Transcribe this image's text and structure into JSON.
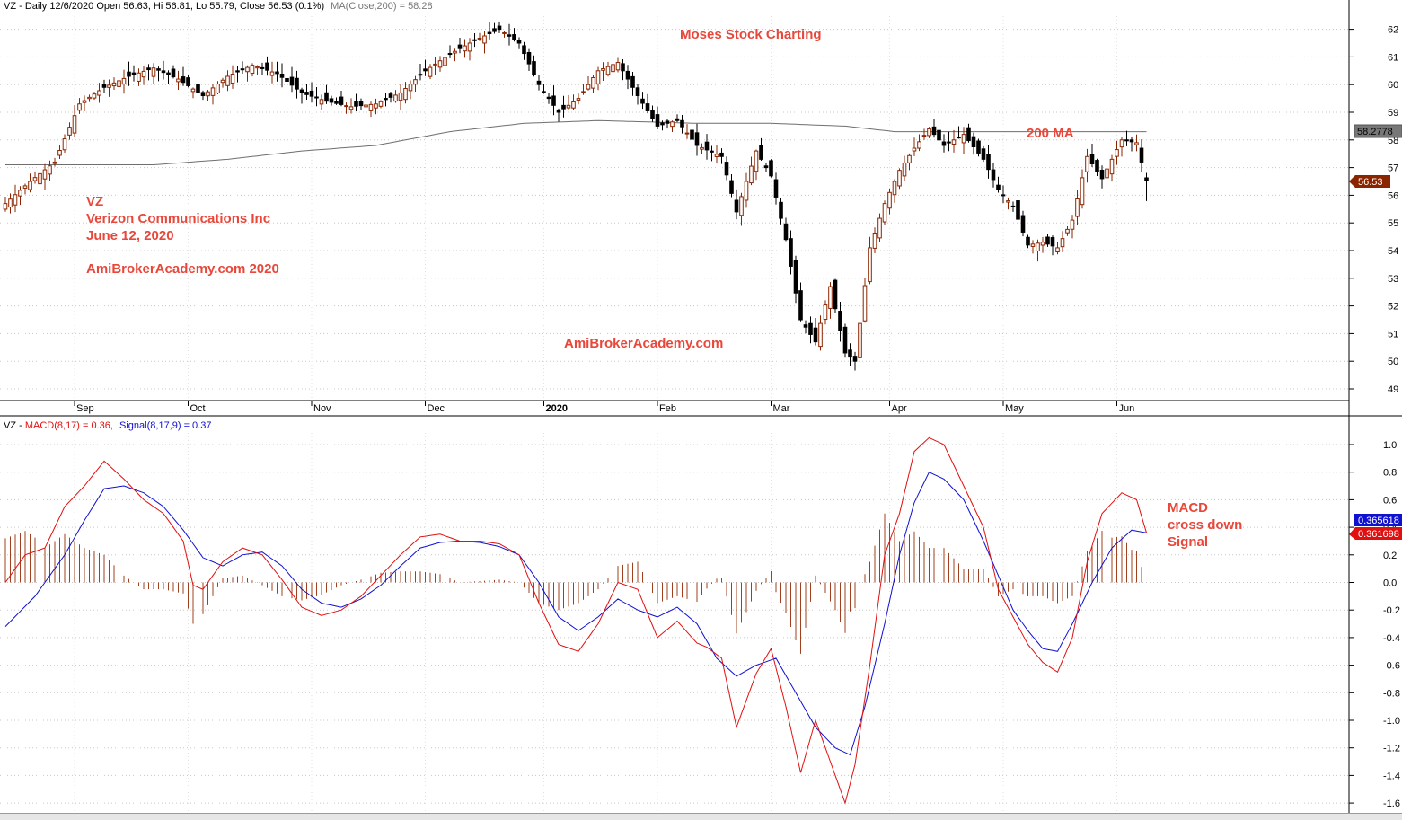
{
  "header": {
    "price_prefix": "VZ - Daily 12/6/2020 Open 56.63, Hi 56.81, Lo 55.79, Close 56.53 (0.1%)",
    "ma_text": "MA(Close,200) = 58.28",
    "macd_prefix": "VZ - ",
    "macd_text": "MACD(8,17) = 0.36,",
    "signal_text": "Signal(8,17,9) = 0.37"
  },
  "annotations": {
    "title": "Moses Stock Charting",
    "ticker": "VZ",
    "company": "Verizon Communications Inc",
    "date": "June 12, 2020",
    "site_left": "AmiBrokerAcademy.com  2020",
    "site_center": "AmiBrokerAcademy.com",
    "ma_label": "200 MA",
    "macd_note_1": "MACD",
    "macd_note_2": "cross down",
    "macd_note_3": "Signal"
  },
  "tags": {
    "ma_value": "58.2778",
    "close_value": "56.53",
    "signal_value": "0.365618",
    "macd_value": "0.361698"
  },
  "colors": {
    "up_candle": "#8b2500",
    "down_candle": "#000000",
    "ma_line": "#6e6e6e",
    "macd_line": "#e01010",
    "signal_line": "#1010d0",
    "histogram": "#a0401e",
    "annotation": "#e8473a"
  },
  "chart_data": [
    {
      "type": "candlestick",
      "name": "price",
      "x_labels": [
        "Sep",
        "Oct",
        "Nov",
        "Dec",
        "2020",
        "Feb",
        "Mar",
        "Apr",
        "May",
        "Jun"
      ],
      "x_label_bars": [
        14,
        37,
        62,
        85,
        109,
        132,
        155,
        179,
        202,
        225
      ],
      "yticks": [
        49,
        50,
        51,
        52,
        53,
        54,
        55,
        56,
        57,
        58,
        59,
        60,
        61,
        62
      ],
      "ylim": [
        48.6,
        63.2
      ],
      "close_points": [
        [
          0,
          55.7
        ],
        [
          5,
          56.5
        ],
        [
          10,
          57.2
        ],
        [
          15,
          59.3
        ],
        [
          20,
          59.9
        ],
        [
          25,
          60.3
        ],
        [
          30,
          60.6
        ],
        [
          35,
          60.2
        ],
        [
          40,
          59.6
        ],
        [
          45,
          60.3
        ],
        [
          50,
          60.7
        ],
        [
          55,
          60.4
        ],
        [
          60,
          59.7
        ],
        [
          65,
          59.4
        ],
        [
          70,
          59.2
        ],
        [
          75,
          59.3
        ],
        [
          80,
          59.7
        ],
        [
          85,
          60.5
        ],
        [
          90,
          61.1
        ],
        [
          95,
          61.6
        ],
        [
          100,
          62.0
        ],
        [
          104,
          61.5
        ],
        [
          108,
          60.0
        ],
        [
          112,
          59.0
        ],
        [
          116,
          59.5
        ],
        [
          120,
          60.5
        ],
        [
          124,
          60.8
        ],
        [
          128,
          59.6
        ],
        [
          132,
          58.5
        ],
        [
          136,
          58.7
        ],
        [
          140,
          57.8
        ],
        [
          145,
          57.4
        ],
        [
          148,
          55.4
        ],
        [
          152,
          57.6
        ],
        [
          155,
          56.7
        ],
        [
          158,
          54.4
        ],
        [
          161,
          51.5
        ],
        [
          164,
          50.7
        ],
        [
          167,
          52.7
        ],
        [
          170,
          50.3
        ],
        [
          172,
          50.0
        ],
        [
          175,
          54.1
        ],
        [
          178,
          55.7
        ],
        [
          181,
          56.9
        ],
        [
          184,
          57.7
        ],
        [
          187,
          58.4
        ],
        [
          190,
          57.8
        ],
        [
          194,
          58.2
        ],
        [
          198,
          57.3
        ],
        [
          201,
          56.2
        ],
        [
          204,
          55.6
        ],
        [
          207,
          54.2
        ],
        [
          210,
          54.3
        ],
        [
          213,
          54.1
        ],
        [
          216,
          55.1
        ],
        [
          219,
          57.4
        ],
        [
          222,
          56.6
        ],
        [
          226,
          58.0
        ],
        [
          229,
          57.9
        ],
        [
          231,
          56.5
        ]
      ],
      "ma200_points": [
        [
          0,
          57.1
        ],
        [
          15,
          57.1
        ],
        [
          30,
          57.1
        ],
        [
          45,
          57.3
        ],
        [
          60,
          57.6
        ],
        [
          75,
          57.8
        ],
        [
          90,
          58.3
        ],
        [
          105,
          58.6
        ],
        [
          120,
          58.7
        ],
        [
          140,
          58.6
        ],
        [
          155,
          58.6
        ],
        [
          170,
          58.5
        ],
        [
          180,
          58.3
        ],
        [
          195,
          58.3
        ],
        [
          210,
          58.3
        ],
        [
          231,
          58.3
        ]
      ],
      "last_close": 56.53,
      "ma200_last": 58.28
    },
    {
      "type": "line",
      "name": "MACD(8,17) / Signal(8,17,9)",
      "yticks": [
        -1.6,
        -1.4,
        -1.2,
        -1.0,
        -0.8,
        -0.6,
        -0.4,
        -0.2,
        0.0,
        0.2,
        0.4,
        0.6,
        0.8,
        1.0
      ],
      "ylim": [
        -1.72,
        1.12
      ],
      "series": [
        {
          "name": "MACD(8,17)",
          "points": [
            [
              0,
              -0.0
            ],
            [
              4,
              0.2
            ],
            [
              8,
              0.25
            ],
            [
              12,
              0.55
            ],
            [
              16,
              0.7
            ],
            [
              20,
              0.88
            ],
            [
              24,
              0.75
            ],
            [
              28,
              0.6
            ],
            [
              32,
              0.5
            ],
            [
              36,
              0.3
            ],
            [
              38,
              -0.02
            ],
            [
              40,
              -0.05
            ],
            [
              44,
              0.15
            ],
            [
              48,
              0.25
            ],
            [
              52,
              0.2
            ],
            [
              56,
              0.02
            ],
            [
              60,
              -0.18
            ],
            [
              64,
              -0.24
            ],
            [
              68,
              -0.2
            ],
            [
              72,
              -0.1
            ],
            [
              76,
              0.05
            ],
            [
              80,
              0.2
            ],
            [
              84,
              0.33
            ],
            [
              88,
              0.35
            ],
            [
              92,
              0.3
            ],
            [
              96,
              0.3
            ],
            [
              100,
              0.28
            ],
            [
              104,
              0.2
            ],
            [
              108,
              -0.15
            ],
            [
              112,
              -0.45
            ],
            [
              116,
              -0.5
            ],
            [
              120,
              -0.3
            ],
            [
              124,
              0.0
            ],
            [
              128,
              -0.05
            ],
            [
              132,
              -0.4
            ],
            [
              136,
              -0.28
            ],
            [
              140,
              -0.44
            ],
            [
              142,
              -0.47
            ],
            [
              145,
              -0.55
            ],
            [
              148,
              -1.05
            ],
            [
              152,
              -0.66
            ],
            [
              155,
              -0.48
            ],
            [
              158,
              -0.9
            ],
            [
              161,
              -1.38
            ],
            [
              164,
              -1.0
            ],
            [
              167,
              -1.3
            ],
            [
              170,
              -1.6
            ],
            [
              172,
              -1.32
            ],
            [
              175,
              -0.6
            ],
            [
              178,
              0.2
            ],
            [
              181,
              0.5
            ],
            [
              184,
              0.95
            ],
            [
              187,
              1.05
            ],
            [
              190,
              1.0
            ],
            [
              194,
              0.7
            ],
            [
              198,
              0.4
            ],
            [
              201,
              -0.05
            ],
            [
              204,
              -0.25
            ],
            [
              207,
              -0.45
            ],
            [
              210,
              -0.58
            ],
            [
              213,
              -0.65
            ],
            [
              216,
              -0.4
            ],
            [
              219,
              0.15
            ],
            [
              222,
              0.5
            ],
            [
              226,
              0.65
            ],
            [
              229,
              0.6
            ],
            [
              231,
              0.36
            ]
          ]
        },
        {
          "name": "Signal(8,17,9)",
          "points": [
            [
              0,
              -0.32
            ],
            [
              6,
              -0.1
            ],
            [
              12,
              0.2
            ],
            [
              16,
              0.45
            ],
            [
              20,
              0.68
            ],
            [
              24,
              0.7
            ],
            [
              28,
              0.65
            ],
            [
              32,
              0.55
            ],
            [
              36,
              0.38
            ],
            [
              40,
              0.18
            ],
            [
              44,
              0.12
            ],
            [
              48,
              0.2
            ],
            [
              52,
              0.22
            ],
            [
              56,
              0.12
            ],
            [
              60,
              -0.05
            ],
            [
              64,
              -0.15
            ],
            [
              68,
              -0.18
            ],
            [
              72,
              -0.12
            ],
            [
              76,
              -0.02
            ],
            [
              80,
              0.12
            ],
            [
              84,
              0.25
            ],
            [
              88,
              0.29
            ],
            [
              92,
              0.3
            ],
            [
              96,
              0.29
            ],
            [
              100,
              0.26
            ],
            [
              104,
              0.2
            ],
            [
              108,
              0.0
            ],
            [
              112,
              -0.25
            ],
            [
              116,
              -0.35
            ],
            [
              120,
              -0.25
            ],
            [
              124,
              -0.12
            ],
            [
              128,
              -0.2
            ],
            [
              132,
              -0.25
            ],
            [
              136,
              -0.18
            ],
            [
              140,
              -0.3
            ],
            [
              144,
              -0.55
            ],
            [
              148,
              -0.68
            ],
            [
              152,
              -0.6
            ],
            [
              156,
              -0.55
            ],
            [
              160,
              -0.8
            ],
            [
              164,
              -1.05
            ],
            [
              168,
              -1.2
            ],
            [
              171,
              -1.25
            ],
            [
              174,
              -0.9
            ],
            [
              178,
              -0.3
            ],
            [
              181,
              0.2
            ],
            [
              184,
              0.58
            ],
            [
              187,
              0.8
            ],
            [
              190,
              0.75
            ],
            [
              194,
              0.6
            ],
            [
              198,
              0.3
            ],
            [
              201,
              0.05
            ],
            [
              204,
              -0.2
            ],
            [
              207,
              -0.35
            ],
            [
              210,
              -0.48
            ],
            [
              213,
              -0.5
            ],
            [
              216,
              -0.3
            ],
            [
              220,
              0.0
            ],
            [
              224,
              0.25
            ],
            [
              228,
              0.38
            ],
            [
              231,
              0.36
            ]
          ]
        }
      ],
      "macd_last": 0.36,
      "signal_last": 0.37
    }
  ]
}
